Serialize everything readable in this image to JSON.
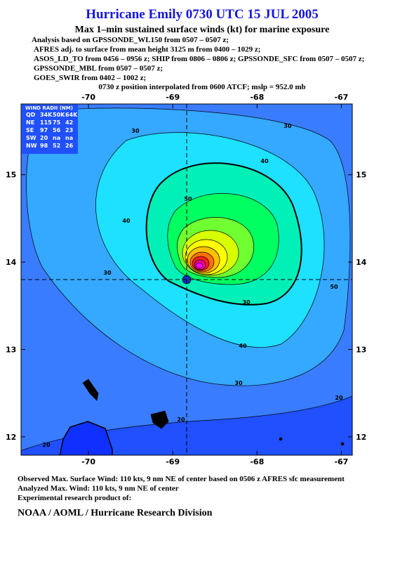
{
  "header": {
    "title": "Hurricane Emily 0730 UTC 15 JUL 2005",
    "subtitle": "Max 1–min sustained surface winds (kt) for marine exposure",
    "analysis": [
      "Analysis based on  GPSSONDE_WL150 from 0507 – 0507 z;",
      "AFRES adj. to surface from mean height 3125 m from 0400 – 1029 z;",
      "ASOS_LD_TO from 0456 – 0956 z;  SHIP from 0806 – 0806 z;  GPSSONDE_SFC from 0507 – 0507 z;",
      "GPSSONDE_MBL from 0507 – 0507 z;",
      "GOES_SWIR from 0402 – 1002 z;"
    ],
    "position_note": "0730 z position interpolated from 0600 ATCF; mslp = 952.0 mb"
  },
  "map": {
    "lon_range": [
      -70.8,
      -66.87
    ],
    "lat_range": [
      11.79,
      15.81
    ],
    "lon_ticks": [
      -70,
      -69,
      -68,
      -67
    ],
    "lat_ticks": [
      15,
      14,
      13,
      12
    ],
    "contour_labels": [
      30,
      30,
      40,
      40,
      50,
      30,
      50,
      30,
      40,
      30,
      20,
      20,
      20
    ]
  },
  "wind_radii": {
    "title": "WIND RADII (NM)",
    "header": [
      "QD",
      "34K",
      "50K",
      "64K"
    ],
    "rows": [
      [
        "NE",
        115,
        75,
        42
      ],
      [
        "SE",
        97,
        56,
        23
      ],
      [
        "SW",
        20,
        "na",
        "na"
      ],
      [
        "NW",
        98,
        52,
        26
      ]
    ]
  },
  "footer": {
    "lines": [
      "Observed Max. Surface Wind: 110 kts, 9 nm NE of center based on 0506 z AFRES sfc measurement",
      "Analyzed Max. Wind: 110 kts, 9 nm NE of center",
      "Experimental research product of:"
    ],
    "org": "NOAA / AOML / Hurricane Research Division"
  }
}
